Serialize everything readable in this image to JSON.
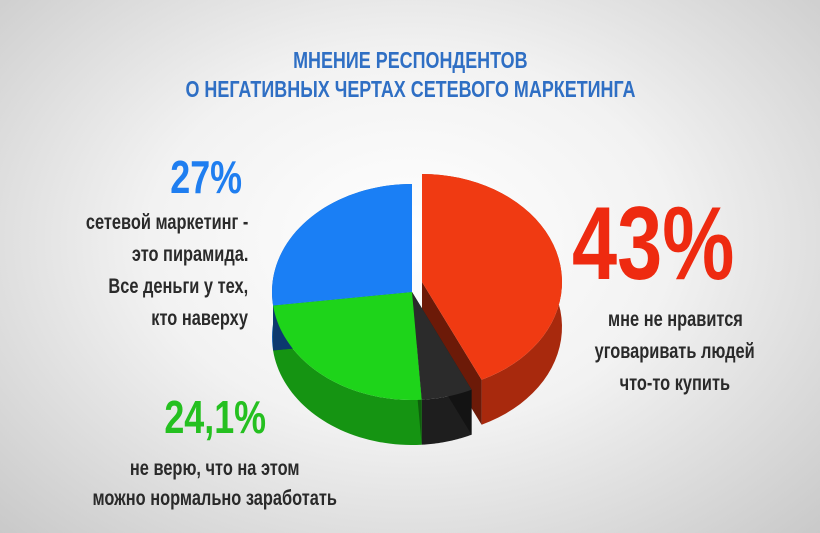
{
  "chart_data": {
    "type": "pie",
    "title": "МНЕНИЕ РЕСПОНДЕНТОВ",
    "subtitle": "О НЕГАТИВНЫХ ЧЕРТАХ СЕТЕВОГО МАРКЕТИНГА",
    "three_d": true,
    "slices": [
      {
        "value": 43,
        "label": "43%",
        "description": [
          "мне не нравится",
          "уговаривать людей",
          "что-то купить"
        ],
        "color": "#f03a12",
        "exploded": true
      },
      {
        "value": 5.9,
        "label": "",
        "description": [],
        "color": "#2b2b2b",
        "exploded": false
      },
      {
        "value": 24.1,
        "label": "24,1%",
        "description": [
          "не верю, что на этом",
          "можно нормально заработать"
        ],
        "color": "#1ed41a",
        "exploded": false
      },
      {
        "value": 27,
        "label": "27%",
        "description": [
          "сетевой маркетинг -",
          "это пирамида.",
          "Все деньги у тех,",
          "кто наверху"
        ],
        "color": "#1a7ff5",
        "exploded": false
      }
    ]
  }
}
